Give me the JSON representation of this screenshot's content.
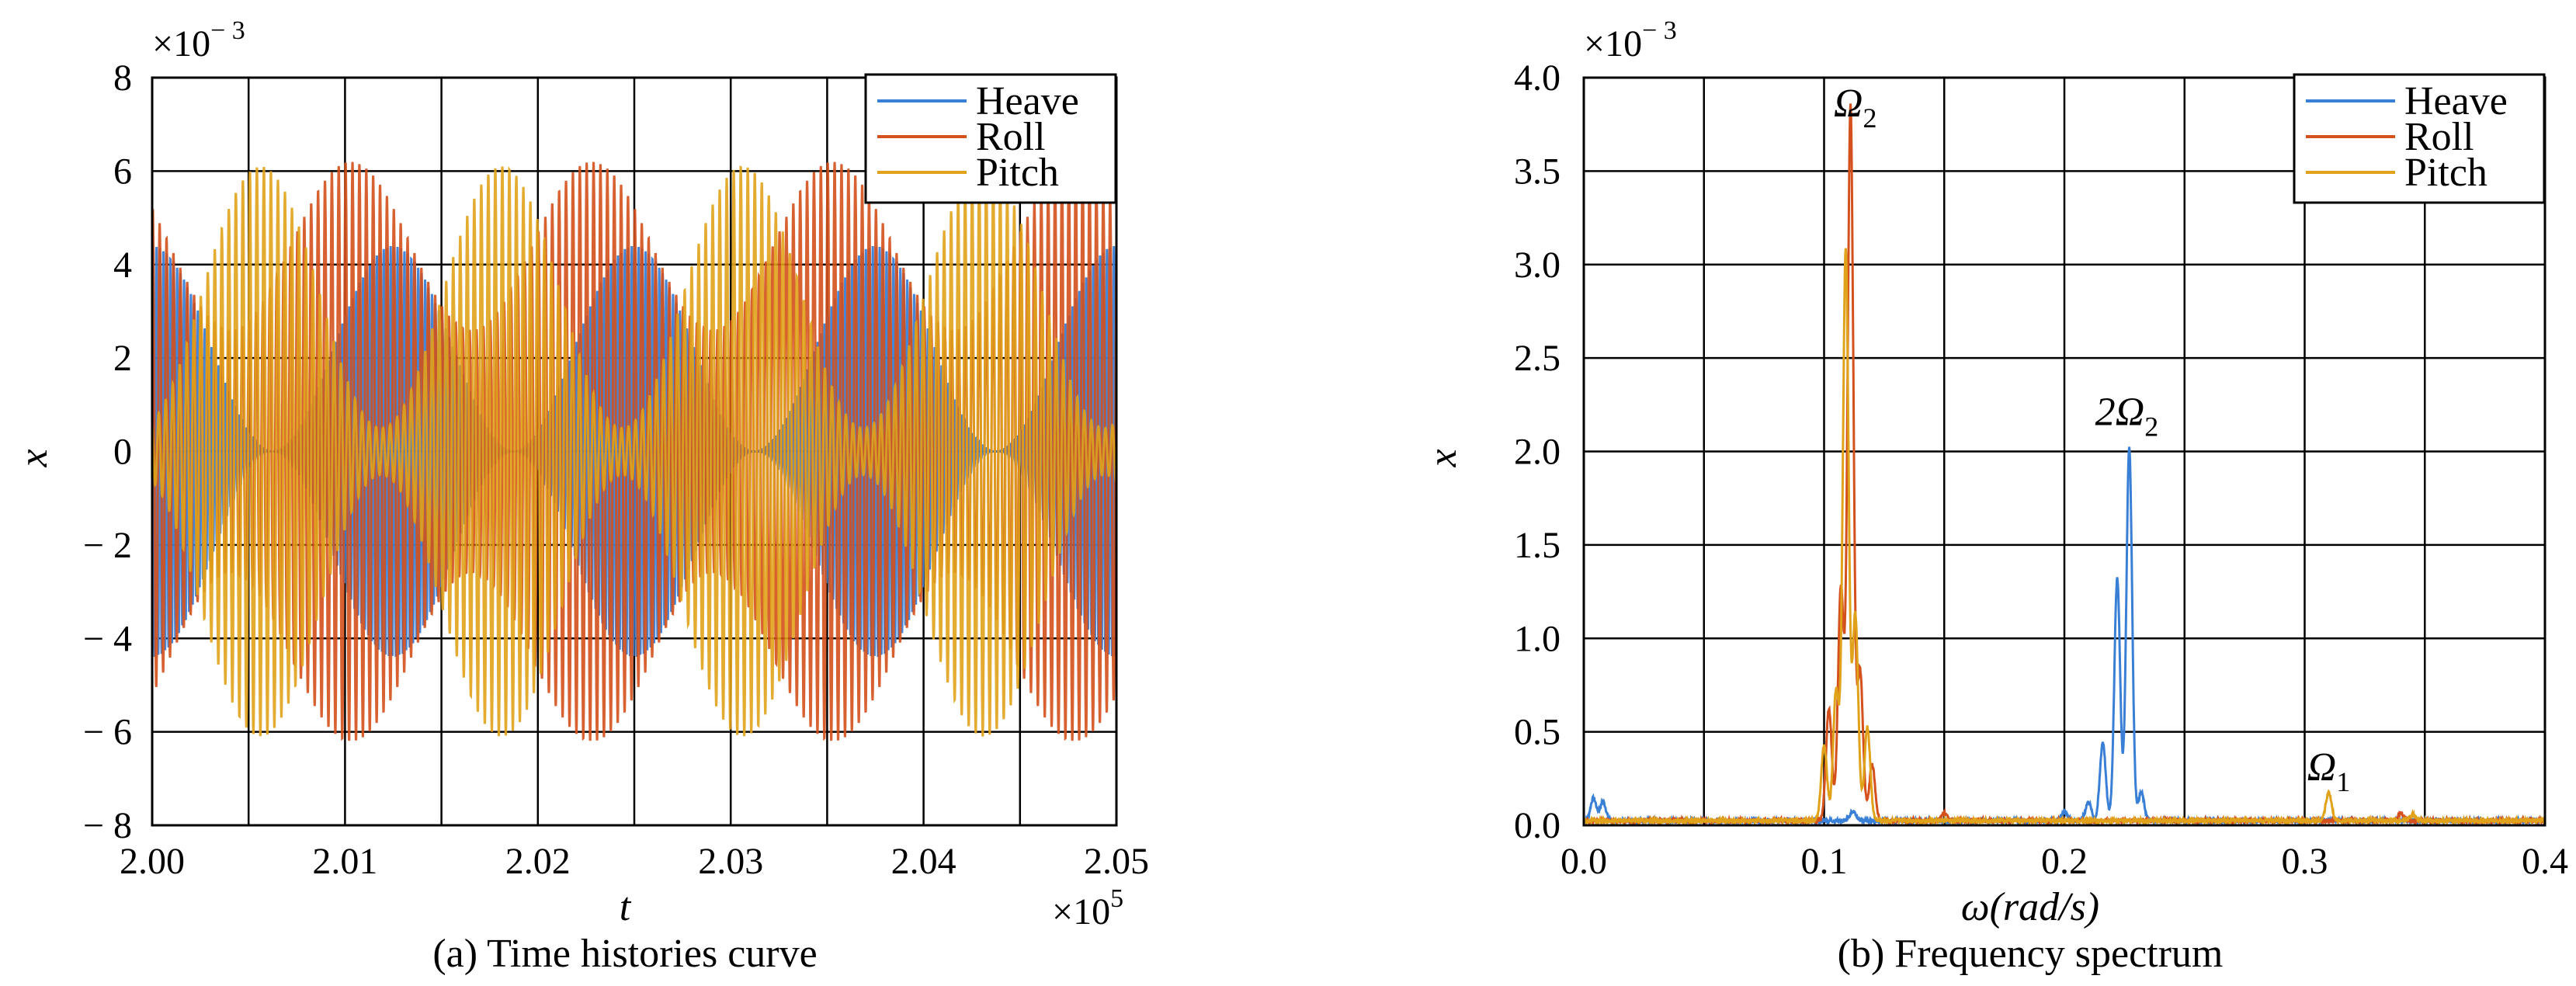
{
  "chart_data": [
    {
      "type": "line",
      "caption": "(a) Time histories curve",
      "xlabel": "t",
      "ylabel": "x",
      "x_multiplier": "×10",
      "x_multiplier_exp": "5",
      "y_multiplier": "×10",
      "y_multiplier_exp": "− 3",
      "xlim": [
        2.0,
        2.05
      ],
      "ylim": [
        -8,
        8
      ],
      "x_ticks": [
        "2.00",
        "2.01",
        "2.02",
        "2.03",
        "2.04",
        "2.05"
      ],
      "y_ticks": [
        "8",
        "6",
        "4",
        "2",
        "0",
        "− 2",
        "− 4",
        "− 6",
        "− 8"
      ],
      "grid": true,
      "legend_position": "top-right",
      "series": [
        {
          "name": "Heave",
          "color": "#3a7fd6",
          "amplitude_envelope": [
            0,
            4.4
          ],
          "envelope_period": 0.0125,
          "carrier_cycles_per_unit": 5600
        },
        {
          "name": "Roll",
          "color": "#d4501c",
          "amplitude_envelope": [
            2.6,
            6.2
          ],
          "envelope_period": 0.0125,
          "carrier_cycles_per_unit": 2800
        },
        {
          "name": "Pitch",
          "color": "#e0a21a",
          "amplitude_envelope": [
            0.5,
            6.1
          ],
          "envelope_period": 0.0125,
          "carrier_cycles_per_unit": 2750
        }
      ]
    },
    {
      "type": "line",
      "caption": "(b) Frequency spectrum",
      "xlabel": "ω(rad/s)",
      "ylabel": "x",
      "y_multiplier": "×10",
      "y_multiplier_exp": "− 3",
      "xlim": [
        0,
        0.4
      ],
      "ylim": [
        0,
        4.0
      ],
      "x_ticks": [
        "0.0",
        "0.1",
        "0.2",
        "0.3",
        "0.4"
      ],
      "y_ticks": [
        "4.0",
        "3.5",
        "3.0",
        "2.5",
        "2.0",
        "1.5",
        "1.0",
        "0.5",
        "0.0"
      ],
      "grid": true,
      "legend_position": "top-right",
      "annotations": [
        {
          "text": "Ω",
          "sub": "2",
          "x": 0.113,
          "y": 3.75
        },
        {
          "text": "2Ω",
          "sub": "2",
          "x": 0.226,
          "y": 2.1
        },
        {
          "text": "Ω",
          "sub": "1",
          "x": 0.31,
          "y": 0.2
        }
      ],
      "series": [
        {
          "name": "Heave",
          "color": "#3a7fd6",
          "peaks": [
            [
              0.004,
              0.12
            ],
            [
              0.008,
              0.1
            ],
            [
              0.112,
              0.05
            ],
            [
              0.2,
              0.05
            ],
            [
              0.21,
              0.1
            ],
            [
              0.216,
              0.42
            ],
            [
              0.222,
              1.3
            ],
            [
              0.227,
              2.0
            ],
            [
              0.232,
              0.15
            ]
          ]
        },
        {
          "name": "Roll",
          "color": "#d4501c",
          "peaks": [
            [
              0.102,
              0.6
            ],
            [
              0.107,
              1.25
            ],
            [
              0.111,
              3.82
            ],
            [
              0.115,
              0.8
            ],
            [
              0.12,
              0.3
            ],
            [
              0.15,
              0.04
            ],
            [
              0.34,
              0.04
            ]
          ]
        },
        {
          "name": "Pitch",
          "color": "#e0a21a",
          "peaks": [
            [
              0.1,
              0.4
            ],
            [
              0.105,
              0.7
            ],
            [
              0.109,
              3.05
            ],
            [
              0.113,
              1.1
            ],
            [
              0.118,
              0.5
            ],
            [
              0.31,
              0.15
            ],
            [
              0.345,
              0.03
            ]
          ]
        }
      ]
    }
  ]
}
